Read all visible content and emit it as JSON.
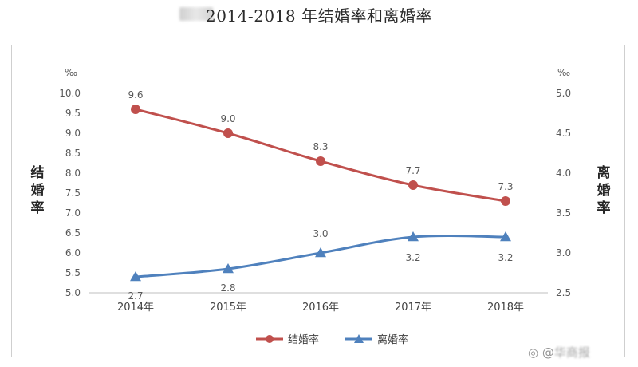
{
  "header": {
    "title_text": "2014-2018 年结婚率和离婚率"
  },
  "chart_data": {
    "type": "line",
    "categories": [
      "2014年",
      "2015年",
      "2016年",
      "2017年",
      "2018年"
    ],
    "series": [
      {
        "name": "结婚率",
        "axis": "left",
        "color": "#c0504d",
        "marker": "circle",
        "values": [
          9.6,
          9.0,
          8.3,
          7.7,
          7.3
        ],
        "labels": [
          "9.6",
          "9.0",
          "8.3",
          "7.7",
          "7.3"
        ]
      },
      {
        "name": "离婚率",
        "axis": "right",
        "color": "#4f81bd",
        "marker": "triangle",
        "values": [
          2.7,
          2.8,
          3.0,
          3.2,
          3.2
        ],
        "labels": [
          "2.7",
          "2.8",
          "3.0",
          "3.2",
          "3.2"
        ]
      }
    ],
    "y_left": {
      "label": "结婚率",
      "unit": "‰",
      "ylim": [
        5.0,
        10.0
      ],
      "ticks": [
        "5.0",
        "5.5",
        "6.0",
        "6.5",
        "7.0",
        "7.5",
        "8.0",
        "8.5",
        "9.0",
        "9.5",
        "10.0"
      ]
    },
    "y_right": {
      "label": "离婚率",
      "unit": "‰",
      "ylim": [
        2.5,
        5.0
      ],
      "ticks": [
        "2.5",
        "3.0",
        "3.5",
        "4.0",
        "4.5",
        "5.0"
      ]
    },
    "grid": false,
    "legend_position": "bottom"
  },
  "watermark": {
    "text": "@",
    "blurred_text": "华商报"
  }
}
